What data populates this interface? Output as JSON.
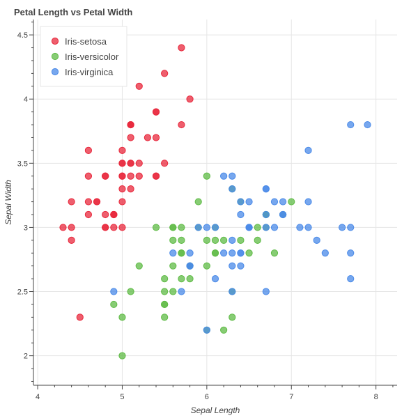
{
  "chart_data": {
    "type": "scatter",
    "title": "Petal Length vs Petal Width",
    "xlabel": "Sepal Length",
    "ylabel": "Sepal Width",
    "xlim": [
      3.95,
      8.25
    ],
    "ylim": [
      1.77,
      4.62
    ],
    "xticks": [
      "4",
      "5",
      "6",
      "7",
      "8"
    ],
    "yticks": [
      "2",
      "2.5",
      "3",
      "3.5",
      "4",
      "4.5"
    ],
    "grid": true,
    "legend_position": "top-left",
    "series": [
      {
        "name": "Iris-setosa",
        "color": "#e8283c",
        "points": [
          [
            5.1,
            3.5
          ],
          [
            4.9,
            3.0
          ],
          [
            4.7,
            3.2
          ],
          [
            4.6,
            3.1
          ],
          [
            5.0,
            3.6
          ],
          [
            5.4,
            3.9
          ],
          [
            4.6,
            3.4
          ],
          [
            5.0,
            3.4
          ],
          [
            4.4,
            2.9
          ],
          [
            4.9,
            3.1
          ],
          [
            5.4,
            3.7
          ],
          [
            4.8,
            3.4
          ],
          [
            4.8,
            3.0
          ],
          [
            4.3,
            3.0
          ],
          [
            5.8,
            4.0
          ],
          [
            5.7,
            4.4
          ],
          [
            5.4,
            3.9
          ],
          [
            5.1,
            3.5
          ],
          [
            5.7,
            3.8
          ],
          [
            5.1,
            3.8
          ],
          [
            5.4,
            3.4
          ],
          [
            5.1,
            3.7
          ],
          [
            4.6,
            3.6
          ],
          [
            5.1,
            3.3
          ],
          [
            4.8,
            3.4
          ],
          [
            5.0,
            3.0
          ],
          [
            5.0,
            3.4
          ],
          [
            5.2,
            3.5
          ],
          [
            5.2,
            3.4
          ],
          [
            4.7,
            3.2
          ],
          [
            4.8,
            3.1
          ],
          [
            5.4,
            3.4
          ],
          [
            5.2,
            4.1
          ],
          [
            5.5,
            4.2
          ],
          [
            4.9,
            3.1
          ],
          [
            5.0,
            3.2
          ],
          [
            5.5,
            3.5
          ],
          [
            4.9,
            3.1
          ],
          [
            4.4,
            3.0
          ],
          [
            5.1,
            3.4
          ],
          [
            5.0,
            3.5
          ],
          [
            4.5,
            2.3
          ],
          [
            4.4,
            3.2
          ],
          [
            5.0,
            3.5
          ],
          [
            5.1,
            3.8
          ],
          [
            4.8,
            3.0
          ],
          [
            5.1,
            3.8
          ],
          [
            4.6,
            3.2
          ],
          [
            5.3,
            3.7
          ],
          [
            5.0,
            3.3
          ]
        ]
      },
      {
        "name": "Iris-versicolor",
        "color": "#5fbb46",
        "points": [
          [
            7.0,
            3.2
          ],
          [
            6.4,
            3.2
          ],
          [
            6.9,
            3.1
          ],
          [
            5.5,
            2.3
          ],
          [
            6.5,
            2.8
          ],
          [
            5.7,
            2.8
          ],
          [
            6.3,
            3.3
          ],
          [
            4.9,
            2.4
          ],
          [
            6.6,
            2.9
          ],
          [
            5.2,
            2.7
          ],
          [
            5.0,
            2.0
          ],
          [
            5.9,
            3.0
          ],
          [
            6.0,
            2.2
          ],
          [
            6.1,
            2.9
          ],
          [
            5.6,
            2.9
          ],
          [
            6.7,
            3.1
          ],
          [
            5.6,
            3.0
          ],
          [
            5.8,
            2.7
          ],
          [
            6.2,
            2.2
          ],
          [
            5.6,
            2.5
          ],
          [
            5.9,
            3.2
          ],
          [
            6.1,
            2.8
          ],
          [
            6.3,
            2.5
          ],
          [
            6.1,
            2.8
          ],
          [
            6.4,
            2.9
          ],
          [
            6.6,
            3.0
          ],
          [
            6.8,
            2.8
          ],
          [
            6.7,
            3.0
          ],
          [
            6.0,
            2.9
          ],
          [
            5.7,
            2.6
          ],
          [
            5.5,
            2.4
          ],
          [
            5.5,
            2.4
          ],
          [
            5.8,
            2.7
          ],
          [
            6.0,
            2.7
          ],
          [
            5.4,
            3.0
          ],
          [
            6.0,
            3.4
          ],
          [
            6.7,
            3.1
          ],
          [
            6.3,
            2.3
          ],
          [
            5.6,
            3.0
          ],
          [
            5.5,
            2.5
          ],
          [
            5.5,
            2.6
          ],
          [
            6.1,
            3.0
          ],
          [
            5.8,
            2.6
          ],
          [
            5.0,
            2.3
          ],
          [
            5.6,
            2.7
          ],
          [
            5.7,
            3.0
          ],
          [
            5.7,
            2.9
          ],
          [
            6.2,
            2.9
          ],
          [
            5.1,
            2.5
          ],
          [
            5.7,
            2.8
          ]
        ]
      },
      {
        "name": "Iris-virginica",
        "color": "#4a8ae8",
        "points": [
          [
            6.3,
            3.3
          ],
          [
            5.8,
            2.7
          ],
          [
            7.1,
            3.0
          ],
          [
            6.3,
            2.9
          ],
          [
            6.5,
            3.0
          ],
          [
            7.6,
            3.0
          ],
          [
            4.9,
            2.5
          ],
          [
            7.3,
            2.9
          ],
          [
            6.7,
            2.5
          ],
          [
            7.2,
            3.6
          ],
          [
            6.5,
            3.2
          ],
          [
            6.4,
            2.7
          ],
          [
            6.8,
            3.0
          ],
          [
            5.7,
            2.5
          ],
          [
            5.8,
            2.8
          ],
          [
            6.4,
            3.2
          ],
          [
            6.5,
            3.0
          ],
          [
            7.7,
            3.8
          ],
          [
            7.7,
            2.6
          ],
          [
            6.0,
            2.2
          ],
          [
            6.9,
            3.2
          ],
          [
            5.6,
            2.8
          ],
          [
            7.7,
            2.8
          ],
          [
            6.3,
            2.7
          ],
          [
            6.7,
            3.3
          ],
          [
            7.2,
            3.2
          ],
          [
            6.2,
            2.8
          ],
          [
            6.1,
            3.0
          ],
          [
            6.4,
            2.8
          ],
          [
            7.2,
            3.0
          ],
          [
            7.4,
            2.8
          ],
          [
            7.9,
            3.8
          ],
          [
            6.4,
            2.8
          ],
          [
            6.3,
            2.8
          ],
          [
            6.1,
            2.6
          ],
          [
            7.7,
            3.0
          ],
          [
            6.3,
            3.4
          ],
          [
            6.4,
            3.1
          ],
          [
            6.0,
            3.0
          ],
          [
            6.9,
            3.1
          ],
          [
            6.7,
            3.1
          ],
          [
            6.9,
            3.1
          ],
          [
            5.8,
            2.7
          ],
          [
            6.8,
            3.2
          ],
          [
            6.7,
            3.3
          ],
          [
            6.7,
            3.0
          ],
          [
            6.3,
            2.5
          ],
          [
            6.5,
            3.0
          ],
          [
            6.2,
            3.4
          ],
          [
            5.9,
            3.0
          ]
        ]
      }
    ]
  }
}
